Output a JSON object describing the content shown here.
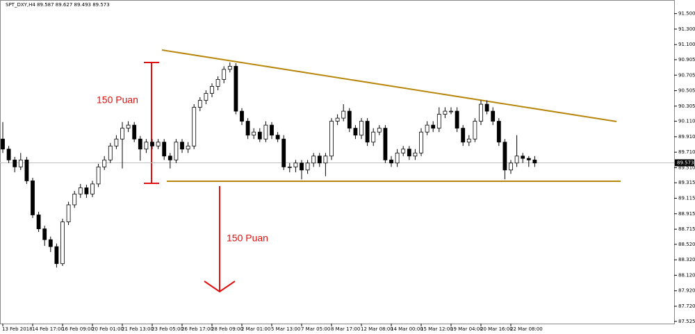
{
  "chart_data": {
    "type": "candlestick",
    "title": "SPT_DXY,H4  89.587 89.627 89.493 89.573",
    "categories": [
      "13 Feb 2018",
      null,
      null,
      null,
      null,
      "14 Feb 17:00",
      null,
      null,
      null,
      null,
      "16 Feb 09:00",
      null,
      null,
      null,
      null,
      "20 Feb 01:00",
      null,
      null,
      null,
      null,
      "21 Feb 13:00",
      null,
      null,
      null,
      null,
      "23 Feb 05:00",
      null,
      null,
      null,
      null,
      "26 Feb 17:00",
      null,
      null,
      null,
      null,
      "28 Feb 09:00",
      null,
      null,
      null,
      null,
      "2 Mar 01:00",
      null,
      null,
      null,
      null,
      "5 Mar 13:00",
      null,
      null,
      null,
      null,
      "7 Mar 05:00",
      null,
      null,
      null,
      null,
      "8 Mar 17:00",
      null,
      null,
      null,
      null,
      "12 Mar 08:00",
      null,
      null,
      null,
      null,
      "14 Mar 00:00",
      null,
      null,
      null,
      null,
      "15 Mar 12:00",
      null,
      null,
      null,
      null,
      "19 Mar 04:00",
      null,
      null,
      null,
      null,
      "20 Mar 16:00",
      null,
      null,
      null,
      null,
      "22 Mar 08:00",
      null,
      null,
      null,
      null
    ],
    "open": [
      89.88,
      89.75,
      89.61,
      89.52,
      89.61,
      89.34,
      88.9,
      88.72,
      88.58,
      88.49,
      88.27,
      88.81,
      89.03,
      89.17,
      89.25,
      89.17,
      89.3,
      89.52,
      89.61,
      89.79,
      89.88,
      90.02,
      90.06,
      89.88,
      89.75,
      89.84,
      89.79,
      89.84,
      89.66,
      89.61,
      89.84,
      89.75,
      89.79,
      90.29,
      90.38,
      90.47,
      90.56,
      90.65,
      90.78,
      90.82,
      90.24,
      90.11,
      89.93,
      89.97,
      89.88,
      90.06,
      89.93,
      89.88,
      89.52,
      89.52,
      89.57,
      89.48,
      89.57,
      89.66,
      89.57,
      89.66,
      90.11,
      90.15,
      90.24,
      90.02,
      89.93,
      90.11,
      89.84,
      89.97,
      90.02,
      89.61,
      89.57,
      89.7,
      89.75,
      89.66,
      89.7,
      89.97,
      90.06,
      90.02,
      90.2,
      90.24,
      90.24,
      90.02,
      89.84,
      89.88,
      90.11,
      90.33,
      90.24,
      90.11,
      89.84,
      89.48,
      89.57,
      89.66,
      89.63,
      89.61
    ],
    "high": [
      90.1,
      89.79,
      89.65,
      89.7,
      89.65,
      89.38,
      88.94,
      88.76,
      88.62,
      88.53,
      88.85,
      89.07,
      89.21,
      89.3,
      89.29,
      89.34,
      89.56,
      89.66,
      89.83,
      89.93,
      90.1,
      90.11,
      90.1,
      89.92,
      89.88,
      89.88,
      89.88,
      89.88,
      89.7,
      89.88,
      89.88,
      89.84,
      90.33,
      90.42,
      90.51,
      90.6,
      90.69,
      90.82,
      90.87,
      90.86,
      90.28,
      90.15,
      90.02,
      90.02,
      90.11,
      90.1,
      89.97,
      89.93,
      89.57,
      89.61,
      89.61,
      89.61,
      89.7,
      89.7,
      89.7,
      90.15,
      90.2,
      90.33,
      90.28,
      90.06,
      90.15,
      90.15,
      90.02,
      90.06,
      90.06,
      89.66,
      89.75,
      89.79,
      89.79,
      89.75,
      90.02,
      90.11,
      90.11,
      90.29,
      90.29,
      90.29,
      90.29,
      90.06,
      89.93,
      90.15,
      90.38,
      90.38,
      90.29,
      90.15,
      89.88,
      89.61,
      89.93,
      89.7,
      89.66,
      89.66
    ],
    "low": [
      89.7,
      89.57,
      89.45,
      89.48,
      89.3,
      88.86,
      88.68,
      88.5,
      88.42,
      88.22,
      88.24,
      88.77,
      88.99,
      89.12,
      89.12,
      89.13,
      89.26,
      89.48,
      89.57,
      89.75,
      89.5,
      89.97,
      89.84,
      89.6,
      89.7,
      89.75,
      89.75,
      89.61,
      89.5,
      89.57,
      89.7,
      89.7,
      89.75,
      90.24,
      90.33,
      90.42,
      90.51,
      90.6,
      90.74,
      90.2,
      90.06,
      89.88,
      89.88,
      89.84,
      89.84,
      89.88,
      89.84,
      89.48,
      89.45,
      89.45,
      89.36,
      89.43,
      89.52,
      89.52,
      89.4,
      89.61,
      90.06,
      90.11,
      89.97,
      89.88,
      89.88,
      89.79,
      89.79,
      89.93,
      89.57,
      89.52,
      89.52,
      89.66,
      89.61,
      89.61,
      89.66,
      89.93,
      89.97,
      89.97,
      90.15,
      90.2,
      89.97,
      89.79,
      89.79,
      89.84,
      90.06,
      90.2,
      90.06,
      89.79,
      89.36,
      89.43,
      89.52,
      89.57,
      89.52,
      89.52
    ],
    "close": [
      89.75,
      89.61,
      89.52,
      89.61,
      89.34,
      88.9,
      88.72,
      88.58,
      88.49,
      88.27,
      88.81,
      89.03,
      89.17,
      89.25,
      89.17,
      89.3,
      89.52,
      89.61,
      89.79,
      89.88,
      90.02,
      90.06,
      89.88,
      89.75,
      89.84,
      89.79,
      89.84,
      89.66,
      89.61,
      89.84,
      89.75,
      89.79,
      90.29,
      90.38,
      90.47,
      90.56,
      90.65,
      90.78,
      90.82,
      90.24,
      90.11,
      89.93,
      89.97,
      89.88,
      90.06,
      89.93,
      89.88,
      89.52,
      89.52,
      89.57,
      89.48,
      89.57,
      89.66,
      89.57,
      89.66,
      90.11,
      90.15,
      90.24,
      90.02,
      89.93,
      90.11,
      89.84,
      89.97,
      90.02,
      89.61,
      89.57,
      89.7,
      89.75,
      89.66,
      89.7,
      89.97,
      90.06,
      90.02,
      90.2,
      90.24,
      90.24,
      90.02,
      89.84,
      89.88,
      90.11,
      90.33,
      90.24,
      90.11,
      89.84,
      89.48,
      89.57,
      89.66,
      89.63,
      89.61,
      89.57
    ],
    "up_color": "#ffffff",
    "down_color": "#000000",
    "ylim": [
      87.496,
      91.676
    ],
    "yticks": [
      {
        "value": 91.5,
        "label": "91.500"
      },
      {
        "value": 91.3,
        "label": "91.300"
      },
      {
        "value": 91.1,
        "label": "91.100"
      },
      {
        "value": 90.905,
        "label": "90.905"
      },
      {
        "value": 90.705,
        "label": "90.705"
      },
      {
        "value": 90.505,
        "label": "90.505"
      },
      {
        "value": 90.305,
        "label": "90.305"
      },
      {
        "value": 90.11,
        "label": "90.110"
      },
      {
        "value": 89.91,
        "label": "89.910"
      },
      {
        "value": 89.71,
        "label": "89.710"
      },
      {
        "value": 89.51,
        "label": "89.510"
      },
      {
        "value": 89.315,
        "label": "89.315"
      },
      {
        "value": 89.115,
        "label": "89.115"
      },
      {
        "value": 88.915,
        "label": "88.915"
      },
      {
        "value": 88.715,
        "label": "88.715"
      },
      {
        "value": 88.52,
        "label": "88.520"
      },
      {
        "value": 88.32,
        "label": "88.320"
      },
      {
        "value": 88.12,
        "label": "88.120"
      },
      {
        "value": 87.92,
        "label": "87.920"
      },
      {
        "value": 87.72,
        "label": "87.720"
      },
      {
        "value": 87.525,
        "label": "87.525"
      }
    ],
    "current_price": {
      "value": 89.573,
      "label": "89.573"
    },
    "annotations": [
      "150 Puan",
      "150 Puan"
    ]
  }
}
